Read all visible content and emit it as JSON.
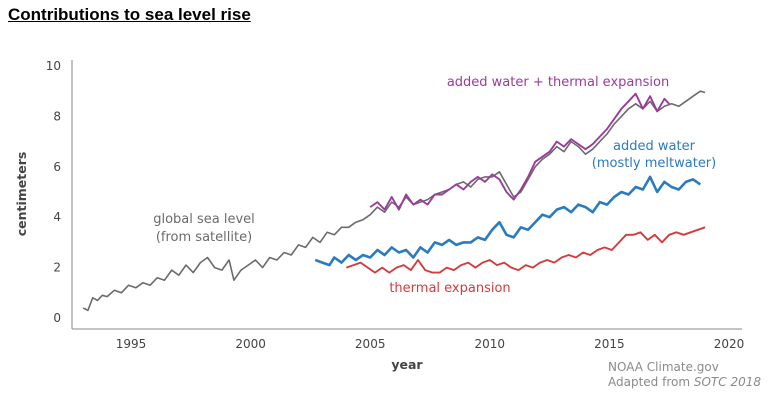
{
  "chart_data": {
    "type": "line",
    "title": "Contributions to sea level rise",
    "xlabel": "year",
    "ylabel": "centimeters",
    "xlim": [
      1992,
      2020
    ],
    "ylim": [
      0,
      10
    ],
    "x_ticks": [
      "1995",
      "2000",
      "2005",
      "2010",
      "2015",
      "2020"
    ],
    "y_ticks": [
      "0",
      "2",
      "4",
      "6",
      "8",
      "10"
    ],
    "grid": false,
    "series": [
      {
        "name": "global sea level (from satellite)",
        "color": "#6b6b6b",
        "points": [
          [
            1993.0,
            0.4
          ],
          [
            1993.2,
            0.3
          ],
          [
            1993.4,
            0.8
          ],
          [
            1993.6,
            0.7
          ],
          [
            1993.8,
            0.9
          ],
          [
            1994.0,
            0.85
          ],
          [
            1994.3,
            1.1
          ],
          [
            1994.6,
            1.0
          ],
          [
            1994.9,
            1.3
          ],
          [
            1995.2,
            1.2
          ],
          [
            1995.5,
            1.4
          ],
          [
            1995.8,
            1.3
          ],
          [
            1996.1,
            1.6
          ],
          [
            1996.4,
            1.5
          ],
          [
            1996.7,
            1.9
          ],
          [
            1997.0,
            1.7
          ],
          [
            1997.3,
            2.1
          ],
          [
            1997.6,
            1.8
          ],
          [
            1997.9,
            2.2
          ],
          [
            1998.2,
            2.4
          ],
          [
            1998.5,
            2.0
          ],
          [
            1998.8,
            1.9
          ],
          [
            1999.1,
            2.3
          ],
          [
            1999.3,
            1.5
          ],
          [
            1999.6,
            1.9
          ],
          [
            1999.9,
            2.1
          ],
          [
            2000.2,
            2.3
          ],
          [
            2000.5,
            2.0
          ],
          [
            2000.8,
            2.4
          ],
          [
            2001.1,
            2.3
          ],
          [
            2001.4,
            2.6
          ],
          [
            2001.7,
            2.5
          ],
          [
            2002.0,
            2.9
          ],
          [
            2002.3,
            2.8
          ],
          [
            2002.6,
            3.2
          ],
          [
            2002.9,
            3.0
          ],
          [
            2003.2,
            3.4
          ],
          [
            2003.5,
            3.3
          ],
          [
            2003.8,
            3.6
          ],
          [
            2004.1,
            3.6
          ],
          [
            2004.4,
            3.8
          ],
          [
            2004.7,
            3.9
          ],
          [
            2005.0,
            4.1
          ],
          [
            2005.3,
            4.4
          ],
          [
            2005.6,
            4.2
          ],
          [
            2005.9,
            4.6
          ],
          [
            2006.2,
            4.4
          ],
          [
            2006.5,
            4.8
          ],
          [
            2006.8,
            4.5
          ],
          [
            2007.1,
            4.6
          ],
          [
            2007.4,
            4.7
          ],
          [
            2007.7,
            4.9
          ],
          [
            2008.0,
            5.0
          ],
          [
            2008.3,
            5.1
          ],
          [
            2008.6,
            5.3
          ],
          [
            2008.9,
            5.4
          ],
          [
            2009.2,
            5.2
          ],
          [
            2009.5,
            5.5
          ],
          [
            2009.8,
            5.6
          ],
          [
            2010.1,
            5.6
          ],
          [
            2010.4,
            5.8
          ],
          [
            2010.7,
            5.3
          ],
          [
            2011.0,
            4.8
          ],
          [
            2011.3,
            5.0
          ],
          [
            2011.6,
            5.5
          ],
          [
            2011.9,
            6.0
          ],
          [
            2012.2,
            6.3
          ],
          [
            2012.5,
            6.5
          ],
          [
            2012.8,
            6.8
          ],
          [
            2013.1,
            6.6
          ],
          [
            2013.4,
            7.0
          ],
          [
            2013.7,
            6.8
          ],
          [
            2014.0,
            6.5
          ],
          [
            2014.3,
            6.7
          ],
          [
            2014.6,
            7.0
          ],
          [
            2014.9,
            7.3
          ],
          [
            2015.2,
            7.7
          ],
          [
            2015.5,
            8.0
          ],
          [
            2015.8,
            8.3
          ],
          [
            2016.1,
            8.5
          ],
          [
            2016.4,
            8.3
          ],
          [
            2016.7,
            8.6
          ],
          [
            2017.0,
            8.2
          ],
          [
            2017.3,
            8.4
          ],
          [
            2017.6,
            8.5
          ],
          [
            2017.9,
            8.4
          ],
          [
            2018.2,
            8.6
          ],
          [
            2018.5,
            8.8
          ],
          [
            2018.8,
            9.0
          ],
          [
            2019.0,
            8.95
          ]
        ]
      },
      {
        "name": "added water + thermal expansion",
        "color": "#9b3b9b",
        "points": [
          [
            2005.0,
            4.4
          ],
          [
            2005.3,
            4.6
          ],
          [
            2005.6,
            4.3
          ],
          [
            2005.9,
            4.8
          ],
          [
            2006.2,
            4.3
          ],
          [
            2006.5,
            4.9
          ],
          [
            2006.8,
            4.5
          ],
          [
            2007.1,
            4.7
          ],
          [
            2007.4,
            4.5
          ],
          [
            2007.7,
            4.9
          ],
          [
            2008.0,
            4.9
          ],
          [
            2008.3,
            5.1
          ],
          [
            2008.6,
            5.3
          ],
          [
            2008.9,
            5.1
          ],
          [
            2009.2,
            5.4
          ],
          [
            2009.5,
            5.6
          ],
          [
            2009.8,
            5.4
          ],
          [
            2010.1,
            5.7
          ],
          [
            2010.4,
            5.5
          ],
          [
            2010.7,
            5.0
          ],
          [
            2011.0,
            4.7
          ],
          [
            2011.3,
            5.1
          ],
          [
            2011.6,
            5.6
          ],
          [
            2011.9,
            6.2
          ],
          [
            2012.2,
            6.4
          ],
          [
            2012.5,
            6.6
          ],
          [
            2012.8,
            7.0
          ],
          [
            2013.1,
            6.8
          ],
          [
            2013.4,
            7.1
          ],
          [
            2013.7,
            6.9
          ],
          [
            2014.0,
            6.7
          ],
          [
            2014.3,
            6.9
          ],
          [
            2014.6,
            7.2
          ],
          [
            2014.9,
            7.5
          ],
          [
            2015.2,
            7.9
          ],
          [
            2015.5,
            8.3
          ],
          [
            2015.8,
            8.6
          ],
          [
            2016.1,
            8.9
          ],
          [
            2016.4,
            8.3
          ],
          [
            2016.7,
            8.8
          ],
          [
            2017.0,
            8.2
          ],
          [
            2017.3,
            8.7
          ],
          [
            2017.5,
            8.5
          ]
        ]
      },
      {
        "name": "added water (mostly meltwater)",
        "color": "#2a7bbf",
        "points": [
          [
            2002.7,
            2.3
          ],
          [
            2003.0,
            2.2
          ],
          [
            2003.3,
            2.1
          ],
          [
            2003.5,
            2.4
          ],
          [
            2003.8,
            2.2
          ],
          [
            2004.1,
            2.5
          ],
          [
            2004.4,
            2.3
          ],
          [
            2004.7,
            2.5
          ],
          [
            2005.0,
            2.4
          ],
          [
            2005.3,
            2.7
          ],
          [
            2005.6,
            2.5
          ],
          [
            2005.9,
            2.8
          ],
          [
            2006.2,
            2.6
          ],
          [
            2006.5,
            2.7
          ],
          [
            2006.8,
            2.4
          ],
          [
            2007.1,
            2.8
          ],
          [
            2007.4,
            2.6
          ],
          [
            2007.7,
            3.0
          ],
          [
            2008.0,
            2.9
          ],
          [
            2008.3,
            3.1
          ],
          [
            2008.6,
            2.9
          ],
          [
            2008.9,
            3.0
          ],
          [
            2009.2,
            3.0
          ],
          [
            2009.5,
            3.2
          ],
          [
            2009.8,
            3.1
          ],
          [
            2010.1,
            3.5
          ],
          [
            2010.4,
            3.8
          ],
          [
            2010.7,
            3.3
          ],
          [
            2011.0,
            3.2
          ],
          [
            2011.3,
            3.6
          ],
          [
            2011.6,
            3.5
          ],
          [
            2011.9,
            3.8
          ],
          [
            2012.2,
            4.1
          ],
          [
            2012.5,
            4.0
          ],
          [
            2012.8,
            4.3
          ],
          [
            2013.1,
            4.4
          ],
          [
            2013.4,
            4.2
          ],
          [
            2013.7,
            4.5
          ],
          [
            2014.0,
            4.4
          ],
          [
            2014.3,
            4.2
          ],
          [
            2014.6,
            4.6
          ],
          [
            2014.9,
            4.5
          ],
          [
            2015.2,
            4.8
          ],
          [
            2015.5,
            5.0
          ],
          [
            2015.8,
            4.9
          ],
          [
            2016.1,
            5.2
          ],
          [
            2016.4,
            5.1
          ],
          [
            2016.7,
            5.6
          ],
          [
            2017.0,
            5.0
          ],
          [
            2017.3,
            5.4
          ],
          [
            2017.6,
            5.2
          ],
          [
            2017.9,
            5.1
          ],
          [
            2018.2,
            5.4
          ],
          [
            2018.5,
            5.5
          ],
          [
            2018.8,
            5.3
          ]
        ]
      },
      {
        "name": "thermal expansion",
        "color": "#d23c3c",
        "points": [
          [
            2004.0,
            2.0
          ],
          [
            2004.3,
            2.1
          ],
          [
            2004.6,
            2.2
          ],
          [
            2004.9,
            2.0
          ],
          [
            2005.2,
            1.8
          ],
          [
            2005.5,
            2.0
          ],
          [
            2005.8,
            1.8
          ],
          [
            2006.1,
            2.0
          ],
          [
            2006.4,
            2.1
          ],
          [
            2006.7,
            1.9
          ],
          [
            2007.0,
            2.3
          ],
          [
            2007.3,
            1.9
          ],
          [
            2007.6,
            1.8
          ],
          [
            2007.9,
            1.8
          ],
          [
            2008.2,
            2.0
          ],
          [
            2008.5,
            1.9
          ],
          [
            2008.8,
            2.1
          ],
          [
            2009.1,
            2.2
          ],
          [
            2009.4,
            2.0
          ],
          [
            2009.7,
            2.2
          ],
          [
            2010.0,
            2.3
          ],
          [
            2010.3,
            2.1
          ],
          [
            2010.6,
            2.2
          ],
          [
            2010.9,
            2.0
          ],
          [
            2011.2,
            1.9
          ],
          [
            2011.5,
            2.1
          ],
          [
            2011.8,
            2.0
          ],
          [
            2012.1,
            2.2
          ],
          [
            2012.4,
            2.3
          ],
          [
            2012.7,
            2.2
          ],
          [
            2013.0,
            2.4
          ],
          [
            2013.3,
            2.5
          ],
          [
            2013.6,
            2.4
          ],
          [
            2013.9,
            2.6
          ],
          [
            2014.2,
            2.5
          ],
          [
            2014.5,
            2.7
          ],
          [
            2014.8,
            2.8
          ],
          [
            2015.1,
            2.7
          ],
          [
            2015.4,
            3.0
          ],
          [
            2015.7,
            3.3
          ],
          [
            2016.0,
            3.3
          ],
          [
            2016.3,
            3.4
          ],
          [
            2016.6,
            3.1
          ],
          [
            2016.9,
            3.3
          ],
          [
            2017.2,
            3.0
          ],
          [
            2017.5,
            3.3
          ],
          [
            2017.8,
            3.4
          ],
          [
            2018.1,
            3.3
          ],
          [
            2018.4,
            3.4
          ],
          [
            2018.7,
            3.5
          ],
          [
            2019.0,
            3.6
          ]
        ]
      }
    ],
    "annotations": {
      "global_line1": "global sea level",
      "global_line2": "(from satellite)",
      "combined": "added water + thermal expansion",
      "added_line1": "added water",
      "added_line2": "(mostly meltwater)",
      "thermal": "thermal expansion"
    }
  },
  "credit": {
    "line1": "NOAA Climate.gov",
    "line2_prefix": "Adapted from ",
    "line2_source": "SOTC 2018"
  }
}
